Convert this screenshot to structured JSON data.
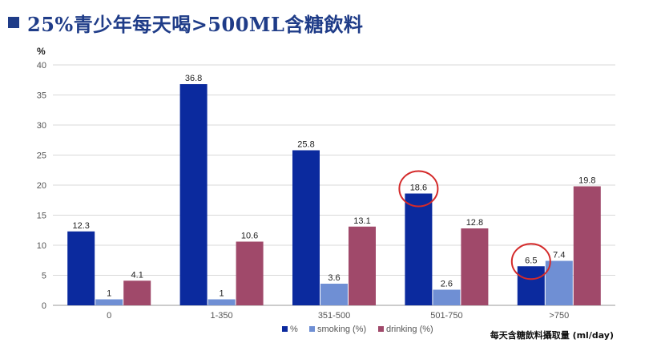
{
  "slide": {
    "title": "25%青少年每天喝>500ML含糖飲料"
  },
  "colors": {
    "title": "#1f3c88",
    "highlight_circle": "#d42a2a"
  },
  "chart_data": {
    "type": "bar",
    "categories": [
      "0",
      "1-350",
      "351-500",
      "501-750",
      ">750"
    ],
    "series": [
      {
        "name": "%",
        "values": [
          12.3,
          36.8,
          25.8,
          18.6,
          6.5
        ],
        "color": "#0b2a9e"
      },
      {
        "name": "smoking (%)",
        "values": [
          1,
          1,
          3.6,
          2.6,
          7.4
        ],
        "color": "#6f8fd4"
      },
      {
        "name": "drinking (%)",
        "values": [
          4.1,
          10.6,
          13.1,
          12.8,
          19.8
        ],
        "color": "#a0496a"
      }
    ],
    "ylabel": "%",
    "xlabel": "每天含糖飲料攝取量 (ml/day)",
    "ylim": [
      0,
      40
    ],
    "yticks": [
      0,
      5,
      10,
      15,
      20,
      25,
      30,
      35,
      40
    ],
    "grid": true,
    "legend_position": "bottom",
    "annotations": [
      {
        "type": "circle",
        "category": "501-750",
        "series": "%",
        "value": 18.6
      },
      {
        "type": "circle",
        "category": ">750",
        "series": "%",
        "value": 6.5
      }
    ]
  }
}
